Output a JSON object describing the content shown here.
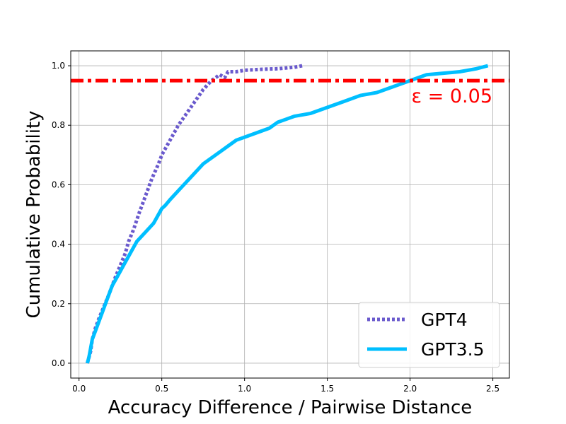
{
  "chart_data": {
    "type": "line",
    "xlabel": "Accuracy Difference / Pairwise Distance",
    "ylabel": "Cumulative Probability",
    "xlim": [
      -0.05,
      2.6
    ],
    "ylim": [
      -0.05,
      1.05
    ],
    "xticks": [
      0.0,
      0.5,
      1.0,
      1.5,
      2.0,
      2.5
    ],
    "xtick_labels": [
      "0.0",
      "0.5",
      "1.0",
      "1.5",
      "2.0",
      "2.5"
    ],
    "yticks": [
      0.0,
      0.2,
      0.4,
      0.6,
      0.8,
      1.0
    ],
    "ytick_labels": [
      "0.0",
      "0.2",
      "0.4",
      "0.6",
      "0.8",
      "1.0"
    ],
    "grid": true,
    "legend_position": "bottom-right",
    "series": [
      {
        "name": "GPT4",
        "color": "#6a5acd",
        "style": "dotted",
        "x": [
          0.05,
          0.07,
          0.08,
          0.1,
          0.12,
          0.15,
          0.18,
          0.2,
          0.22,
          0.25,
          0.28,
          0.3,
          0.33,
          0.36,
          0.4,
          0.44,
          0.48,
          0.5,
          0.55,
          0.6,
          0.65,
          0.7,
          0.75,
          0.8,
          0.85,
          0.88,
          0.9,
          0.95,
          1.0,
          1.1,
          1.2,
          1.3,
          1.35
        ],
        "y": [
          0.0,
          0.04,
          0.08,
          0.12,
          0.15,
          0.19,
          0.23,
          0.26,
          0.29,
          0.33,
          0.37,
          0.41,
          0.45,
          0.5,
          0.56,
          0.62,
          0.67,
          0.7,
          0.75,
          0.8,
          0.84,
          0.88,
          0.92,
          0.95,
          0.97,
          0.96,
          0.98,
          0.98,
          0.985,
          0.988,
          0.99,
          0.995,
          1.0
        ]
      },
      {
        "name": "GPT3.5",
        "color": "#00bfff",
        "style": "solid",
        "x": [
          0.05,
          0.06,
          0.07,
          0.08,
          0.1,
          0.12,
          0.14,
          0.16,
          0.18,
          0.2,
          0.22,
          0.25,
          0.28,
          0.3,
          0.33,
          0.35,
          0.4,
          0.45,
          0.5,
          0.52,
          0.55,
          0.6,
          0.65,
          0.7,
          0.75,
          0.8,
          0.85,
          0.9,
          0.95,
          1.0,
          1.05,
          1.1,
          1.15,
          1.2,
          1.25,
          1.3,
          1.4,
          1.5,
          1.6,
          1.7,
          1.8,
          1.9,
          2.0,
          2.05,
          2.1,
          2.2,
          2.3,
          2.4,
          2.47
        ],
        "y": [
          0.0,
          0.02,
          0.05,
          0.08,
          0.11,
          0.14,
          0.17,
          0.2,
          0.23,
          0.26,
          0.28,
          0.31,
          0.34,
          0.36,
          0.39,
          0.41,
          0.44,
          0.47,
          0.52,
          0.53,
          0.55,
          0.58,
          0.61,
          0.64,
          0.67,
          0.69,
          0.71,
          0.73,
          0.75,
          0.76,
          0.77,
          0.78,
          0.79,
          0.81,
          0.82,
          0.83,
          0.84,
          0.86,
          0.88,
          0.9,
          0.91,
          0.93,
          0.95,
          0.96,
          0.97,
          0.975,
          0.98,
          0.99,
          1.0
        ]
      }
    ],
    "threshold": {
      "y": 0.95,
      "color": "#ff0000",
      "style": "dashdot",
      "label": "ε = 0.05"
    }
  }
}
